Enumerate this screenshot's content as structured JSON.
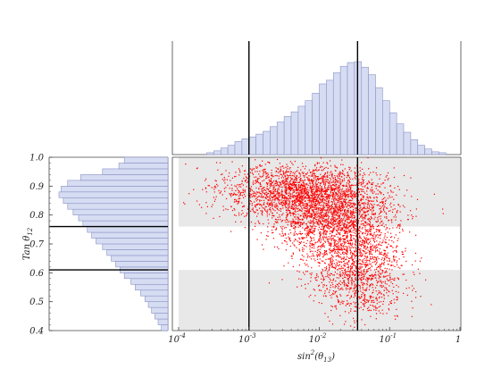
{
  "chart_data": {
    "type": "scatter",
    "xlabel": "sin²(θ₁₃)",
    "ylabel": "Tan θ₁₂",
    "x_scale": "log",
    "xlim": [
      0.0001,
      1
    ],
    "ylim": [
      0.4,
      1.0
    ],
    "x_ticks": [
      {
        "value": 0.0001,
        "base": "10",
        "exp": "-4"
      },
      {
        "value": 0.001,
        "base": "10",
        "exp": "-3"
      },
      {
        "value": 0.01,
        "base": "10",
        "exp": "-2"
      },
      {
        "value": 0.1,
        "base": "10",
        "exp": "-1"
      },
      {
        "value": 1,
        "base": "1",
        "exp": ""
      }
    ],
    "y_ticks": [
      "0.4",
      "0.5",
      "0.6",
      "0.7",
      "0.8",
      "0.9",
      "1.0"
    ],
    "colors": {
      "points": "#ff0000",
      "bands": "#e8e8e8",
      "hist_fill": "#d6dcf2",
      "hist_edge": "#8a93c6",
      "lines": "#000000"
    },
    "reference_lines": {
      "x": [
        0.001,
        0.035
      ],
      "y": [
        0.61,
        0.76
      ]
    },
    "shaded_y_bands": [
      [
        0.76,
        1.0
      ],
      [
        0.4,
        0.61
      ]
    ],
    "scatter_cloud": {
      "clusters": [
        {
          "log10_x_mean": -2.3,
          "log10_x_sd": 0.55,
          "y_mean": 0.885,
          "y_sd": 0.045,
          "count": 1800
        },
        {
          "log10_x_mean": -1.85,
          "log10_x_sd": 0.45,
          "y_mean": 0.8,
          "y_sd": 0.06,
          "count": 1700
        },
        {
          "log10_x_mean": -1.55,
          "log10_x_sd": 0.35,
          "y_mean": 0.67,
          "y_sd": 0.07,
          "count": 1100
        },
        {
          "log10_x_mean": -1.4,
          "log10_x_sd": 0.3,
          "y_mean": 0.55,
          "y_sd": 0.06,
          "count": 500
        }
      ]
    },
    "top_histogram": {
      "bins_log10_x_start": -3.6,
      "bin_width_log10": 0.1,
      "values": [
        2,
        4,
        7,
        10,
        14,
        17,
        19,
        22,
        25,
        30,
        35,
        41,
        46,
        52,
        58,
        66,
        76,
        80,
        88,
        95,
        99,
        100,
        94,
        86,
        72,
        58,
        45,
        33,
        24,
        16,
        10,
        6,
        3,
        2
      ]
    },
    "left_histogram": {
      "bins_y_start": 0.4,
      "bin_width": 0.02,
      "values": [
        6,
        9,
        12,
        15,
        18,
        21,
        25,
        30,
        34,
        40,
        44,
        48,
        52,
        56,
        60,
        66,
        70,
        74,
        78,
        82,
        87,
        92,
        96,
        100,
        98,
        92,
        80,
        60,
        45,
        40
      ]
    }
  }
}
